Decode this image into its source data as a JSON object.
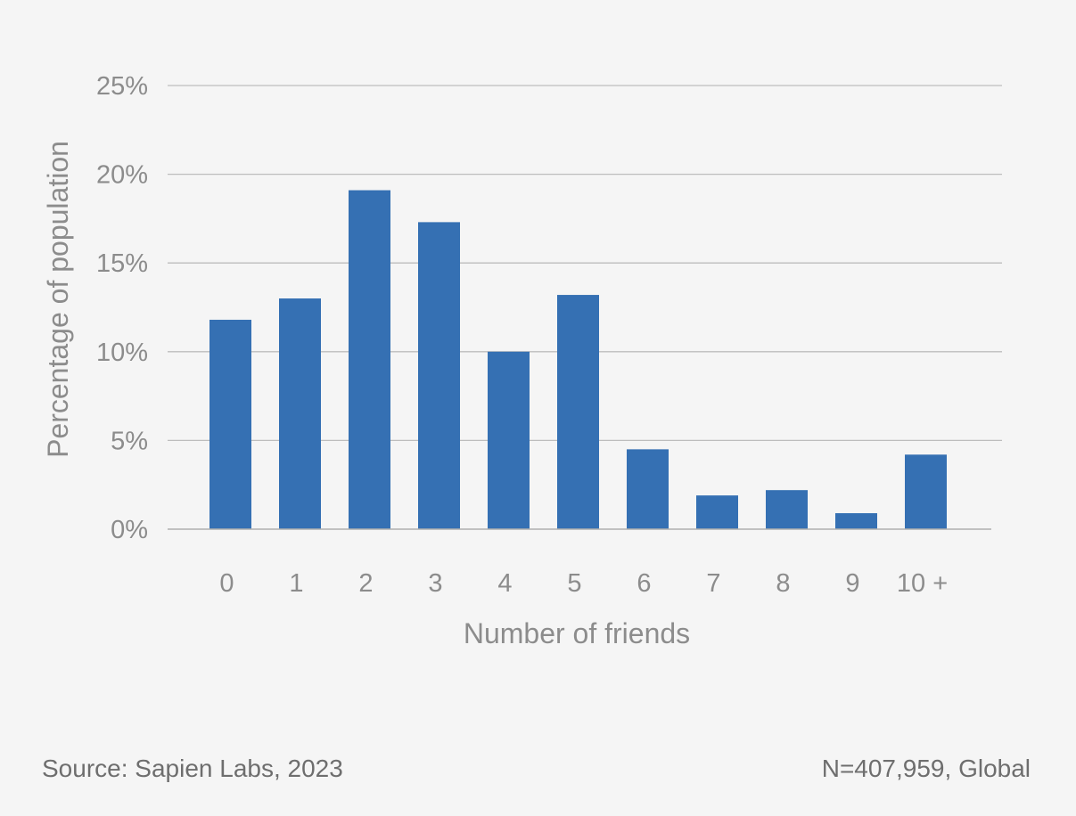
{
  "chart_data": {
    "type": "bar",
    "categories": [
      "0",
      "1",
      "2",
      "3",
      "4",
      "5",
      "6",
      "7",
      "8",
      "9",
      "10 +"
    ],
    "values": [
      11.8,
      13.0,
      19.1,
      17.3,
      10.0,
      13.2,
      4.5,
      1.9,
      2.2,
      0.9,
      4.2
    ],
    "xlabel": "Number of friends",
    "ylabel": "Percentage of population",
    "ylim": [
      0,
      25
    ],
    "yticks": [
      "0%",
      "5%",
      "10%",
      "15%",
      "20%",
      "25%"
    ],
    "bar_color": "#3570b3",
    "grid": true,
    "legend": "none"
  },
  "footer": {
    "source": "Source: Sapien Labs, 2023",
    "note": "N=407,959, Global"
  }
}
